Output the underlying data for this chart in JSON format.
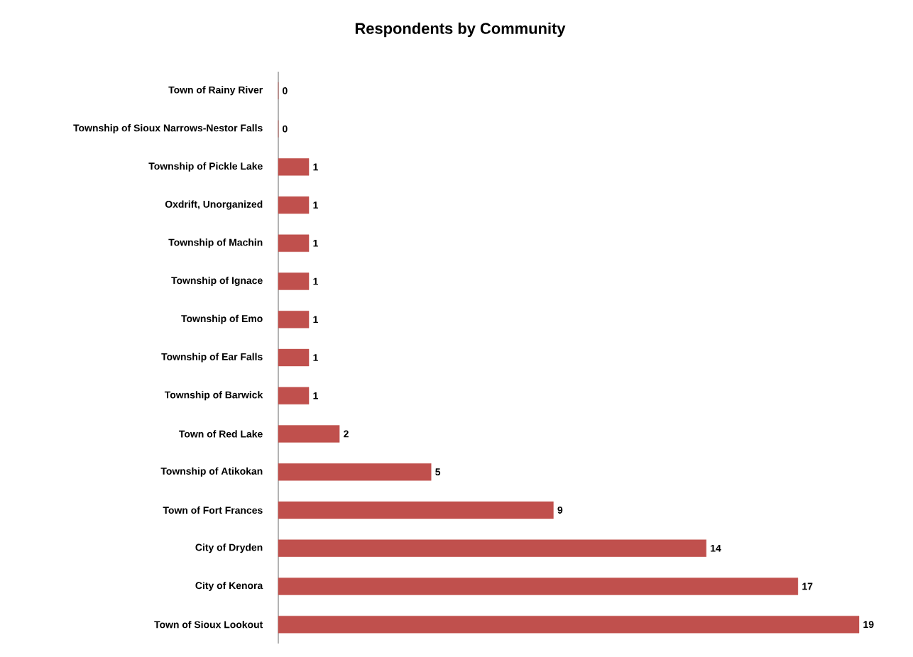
{
  "chart_data": {
    "type": "bar",
    "orientation": "horizontal",
    "title": "Respondents by Community",
    "categories": [
      "Town of Rainy River",
      "Township of Sioux Narrows-Nestor Falls",
      "Township of Pickle Lake",
      "Oxdrift, Unorganized",
      "Township of Machin",
      "Township of Ignace",
      "Township of Emo",
      "Township of Ear Falls",
      "Township of Barwick",
      "Town of Red Lake",
      "Township of Atikokan",
      "Town of Fort Frances",
      "City of Dryden",
      "City of Kenora",
      "Town of Sioux Lookout"
    ],
    "values": [
      0,
      0,
      1,
      1,
      1,
      1,
      1,
      1,
      1,
      2,
      5,
      9,
      14,
      17,
      19
    ],
    "color": "#c0504d",
    "data_labels": true
  }
}
